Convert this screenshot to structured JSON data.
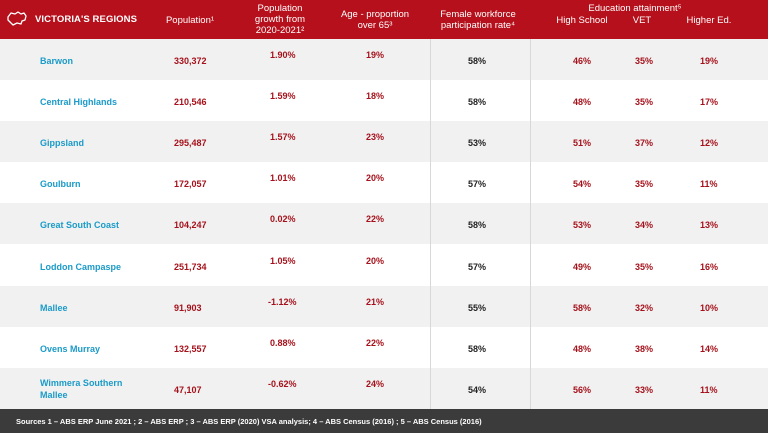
{
  "header": {
    "title": "VICTORIA'S REGIONS",
    "population": "Population¹",
    "growth_line1": "Population",
    "growth_line2": "growth from",
    "growth_line3": "2020-2021²",
    "age_line1": "Age - proportion",
    "age_line2": "over 65³",
    "female_line1": "Female workforce",
    "female_line2": "participation rate⁴",
    "education": "Education attainment⁵",
    "high_school": "High School",
    "vet": "VET",
    "higher_ed": "Higher Ed."
  },
  "rows": [
    {
      "region": "Barwon",
      "population": "330,372",
      "growth": "1.90%",
      "age": "19%",
      "female": "58%",
      "high_school": "46%",
      "vet": "35%",
      "higher_ed": "19%"
    },
    {
      "region": "Central Highlands",
      "population": "210,546",
      "growth": "1.59%",
      "age": "18%",
      "female": "58%",
      "high_school": "48%",
      "vet": "35%",
      "higher_ed": "17%"
    },
    {
      "region": "Gippsland",
      "population": "295,487",
      "growth": "1.57%",
      "age": "23%",
      "female": "53%",
      "high_school": "51%",
      "vet": "37%",
      "higher_ed": "12%"
    },
    {
      "region": "Goulburn",
      "population": "172,057",
      "growth": "1.01%",
      "age": "20%",
      "female": "57%",
      "high_school": "54%",
      "vet": "35%",
      "higher_ed": "11%"
    },
    {
      "region": "Great South Coast",
      "population": "104,247",
      "growth": "0.02%",
      "age": "22%",
      "female": "58%",
      "high_school": "53%",
      "vet": "34%",
      "higher_ed": "13%"
    },
    {
      "region": "Loddon Campaspe",
      "population": "251,734",
      "growth": "1.05%",
      "age": "20%",
      "female": "57%",
      "high_school": "49%",
      "vet": "35%",
      "higher_ed": "16%"
    },
    {
      "region": "Mallee",
      "population": "91,903",
      "growth": "-1.12%",
      "age": "21%",
      "female": "55%",
      "high_school": "58%",
      "vet": "32%",
      "higher_ed": "10%"
    },
    {
      "region": "Ovens Murray",
      "population": "132,557",
      "growth": "0.88%",
      "age": "22%",
      "female": "58%",
      "high_school": "48%",
      "vet": "38%",
      "higher_ed": "14%"
    },
    {
      "region_line1": "Wimmera Southern",
      "region_line2": "Mallee",
      "population": "47,107",
      "growth": "-0.62%",
      "age": "24%",
      "female": "54%",
      "high_school": "56%",
      "vet": "33%",
      "higher_ed": "11%"
    }
  ],
  "footer": {
    "sources": "Sources 1 – ABS ERP June 2021 ; 2 – ABS ERP ; 3 – ABS ERP (2020) VSA analysis; 4 – ABS Census (2016) ; 5 – ABS Census (2016)"
  },
  "colors": {
    "header_bg": "#b5101b",
    "region_text": "#1a9bc8",
    "value_red": "#a5111b",
    "footer_bg": "#3b3b3b"
  },
  "icons": {
    "logo": "victoria-map-icon"
  }
}
